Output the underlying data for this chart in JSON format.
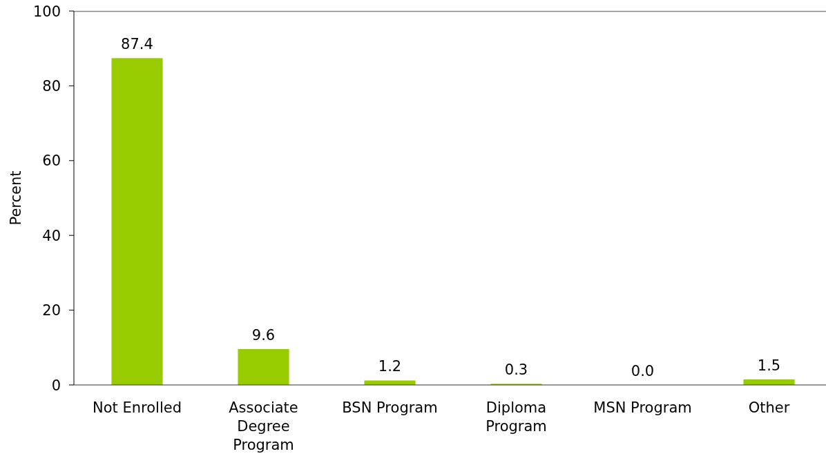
{
  "chart_data": {
    "type": "bar",
    "ylabel": "Percent",
    "categories": [
      "Not Enrolled",
      "Associate Degree Program",
      "BSN Program",
      "Diploma Program",
      "MSN Program",
      "Other"
    ],
    "values": [
      87.4,
      9.6,
      1.2,
      0.3,
      0.0,
      1.5
    ],
    "value_labels": [
      "87.4",
      "9.6",
      "1.2",
      "0.3",
      "0.0",
      "1.5"
    ],
    "color": "#99cc00",
    "ylim": [
      0,
      100
    ],
    "yticks": [
      0,
      20,
      40,
      60,
      80,
      100
    ]
  }
}
